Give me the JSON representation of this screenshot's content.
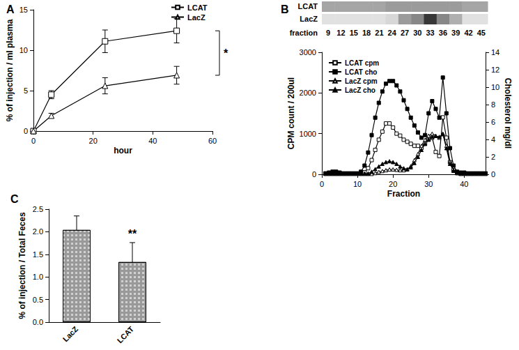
{
  "chart_data": [
    {
      "type": "line",
      "title": "A",
      "x_label": "hour",
      "y_label": "% of injection / ml plasma",
      "x": [
        0,
        6,
        24,
        48
      ],
      "series": [
        {
          "name": "LCAT",
          "color": "#000000",
          "marker": "open-square",
          "values": [
            0,
            4.5,
            11.1,
            12.4
          ],
          "errors": [
            0,
            0.5,
            1.4,
            1.5
          ]
        },
        {
          "name": "LacZ",
          "color": "#000000",
          "marker": "open-triangle",
          "values": [
            0,
            1.9,
            5.6,
            6.9
          ],
          "errors": [
            0,
            0.3,
            1.0,
            1.1
          ]
        }
      ],
      "xlim": [
        0,
        60
      ],
      "xticks": [
        0,
        20,
        40,
        60
      ],
      "ylim": [
        0,
        15
      ],
      "yticks": [
        0,
        5,
        10,
        15
      ],
      "legend": "upper right",
      "grid": false,
      "annotations": [
        {
          "text": "*",
          "between": [
            "LCAT",
            "LacZ"
          ]
        }
      ]
    },
    {
      "type": "line",
      "title": "B",
      "x_label": "Fraction",
      "y_label": "CPM count / 200ul",
      "y2_label": "Cholesterol mg/dl",
      "x": [
        1,
        2,
        3,
        4,
        5,
        6,
        7,
        8,
        9,
        10,
        11,
        12,
        13,
        14,
        15,
        16,
        17,
        18,
        19,
        20,
        21,
        22,
        23,
        24,
        25,
        26,
        27,
        28,
        29,
        30,
        31,
        32,
        33,
        34,
        35,
        36,
        37,
        38,
        39,
        40,
        41,
        42,
        43,
        44,
        45,
        46
      ],
      "series": [
        {
          "name": "LCAT cpm",
          "color": "#000000",
          "marker": "open-square",
          "values": [
            20,
            20,
            30,
            30,
            20,
            20,
            20,
            20,
            20,
            20,
            30,
            50,
            150,
            350,
            600,
            850,
            1050,
            1250,
            1250,
            1150,
            1000,
            950,
            850,
            800,
            750,
            700,
            700,
            650,
            750,
            850,
            900,
            550,
            450,
            1400,
            900,
            300,
            100,
            30,
            20,
            20,
            20,
            20,
            20,
            20,
            20,
            20
          ]
        },
        {
          "name": "LCAT cho",
          "color": "#000000",
          "marker": "filled-square",
          "axis": "y2",
          "values": [
            0.1,
            0.2,
            0.3,
            0.3,
            0.2,
            0.1,
            0.1,
            0.1,
            0.1,
            0.1,
            0.3,
            1.0,
            2.5,
            4.5,
            6.5,
            8.2,
            9.5,
            10.4,
            10.7,
            10.7,
            10.2,
            9.5,
            8.5,
            7.5,
            6.5,
            5.6,
            4.8,
            4.2,
            4.5,
            7.0,
            8.4,
            7.5,
            6.5,
            11.1,
            7.0,
            3.0,
            1.0,
            0.3,
            0.2,
            0.2,
            0.1,
            0.1,
            0.1,
            0.1,
            0.1,
            0.1
          ]
        },
        {
          "name": "LacZ cpm",
          "color": "#000000",
          "marker": "open-triangle",
          "values": [
            10,
            10,
            10,
            10,
            10,
            10,
            10,
            10,
            10,
            10,
            10,
            10,
            10,
            10,
            30,
            60,
            80,
            100,
            120,
            120,
            110,
            100,
            100,
            120,
            200,
            350,
            500,
            700,
            850,
            950,
            1000,
            950,
            900,
            1000,
            700,
            300,
            100,
            30,
            10,
            10,
            10,
            10,
            10,
            10,
            10,
            10
          ]
        },
        {
          "name": "LacZ cho",
          "color": "#000000",
          "marker": "filled-triangle",
          "axis": "y2",
          "values": [
            0.1,
            0.1,
            0.1,
            0.1,
            0.1,
            0.1,
            0.1,
            0.1,
            0.1,
            0.1,
            0.1,
            0.1,
            0.1,
            0.3,
            0.6,
            0.9,
            1.2,
            1.4,
            1.5,
            1.4,
            1.2,
            0.9,
            0.7,
            0.6,
            0.8,
            1.3,
            2.0,
            2.8,
            3.5,
            4.0,
            4.3,
            4.4,
            4.3,
            4.6,
            3.0,
            1.2,
            0.4,
            0.2,
            0.1,
            0.1,
            0.1,
            0.1,
            0.1,
            0.1,
            0.1,
            0.1
          ]
        }
      ],
      "xlim": [
        0,
        46
      ],
      "xticks": [
        0,
        10,
        20,
        30,
        40
      ],
      "ylim": [
        0,
        3000
      ],
      "yticks": [
        0,
        1000,
        2000,
        3000
      ],
      "y2lim": [
        0,
        14
      ],
      "y2ticks": [
        0,
        2,
        4,
        6,
        8,
        10,
        12,
        14
      ],
      "legend": "upper left",
      "grid": false,
      "gel": {
        "label": "fraction",
        "fractions": [
          9,
          12,
          15,
          18,
          21,
          24,
          27,
          30,
          33,
          36,
          39,
          42,
          45
        ],
        "rows": [
          {
            "name": "LCAT",
            "intensity": [
              0.35,
              0.35,
              0.35,
              0.35,
              0.35,
              0.4,
              0.4,
              0.4,
              0.4,
              0.4,
              0.4,
              0.35,
              0.35
            ]
          },
          {
            "name": "LacZ",
            "intensity": [
              0.05,
              0.05,
              0.05,
              0.05,
              0.05,
              0.1,
              0.4,
              0.5,
              0.9,
              0.5,
              0.3,
              0.05,
              0.05
            ]
          }
        ]
      }
    },
    {
      "type": "bar",
      "title": "C",
      "y_label": "% of injection / Total Feces",
      "categories": [
        "LacZ",
        "LCAT"
      ],
      "values": [
        2.04,
        1.33
      ],
      "errors": [
        0.31,
        0.43
      ],
      "color": "#999999",
      "ylim": [
        0,
        2.5
      ],
      "yticks": [
        {
          "value": 0,
          "label": "0.0"
        },
        0.5,
        {
          "value": 1,
          "label": "1.0"
        },
        1.5,
        {
          "value": 2,
          "label": "2.0"
        },
        2.5
      ],
      "grid": false,
      "annotations": [
        {
          "text": "**",
          "category": "LCAT"
        }
      ]
    }
  ]
}
